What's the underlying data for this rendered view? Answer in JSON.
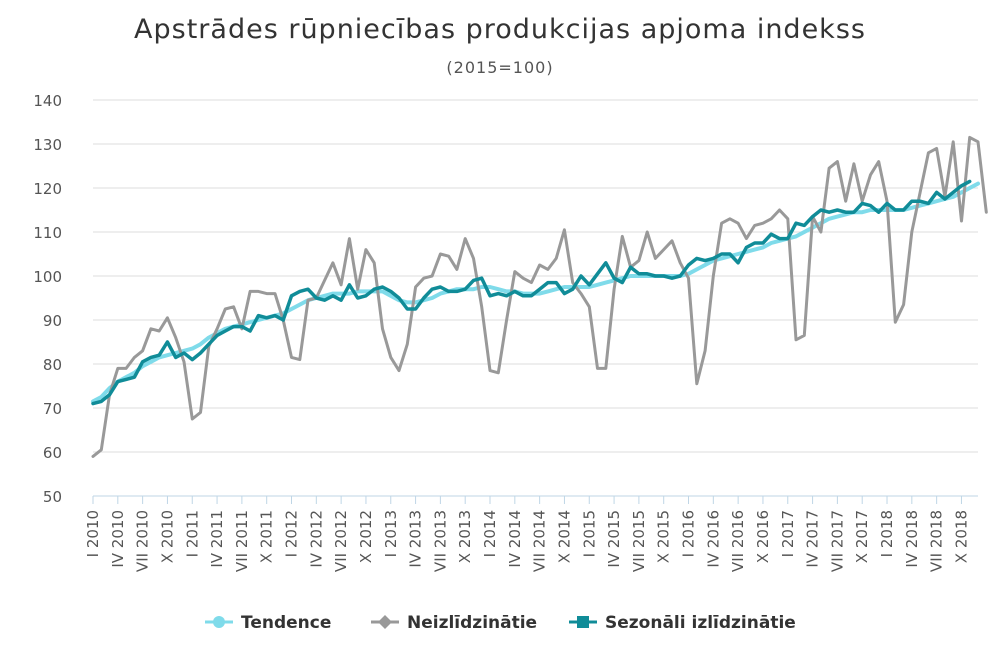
{
  "chart_data": {
    "type": "line",
    "title": "Apstrādes rūpniecības produkcijas apjoma indekss",
    "subtitle": "(2015=100)",
    "xlabel": "",
    "ylabel": "",
    "ylim": [
      50,
      140
    ],
    "yticks": [
      50,
      60,
      70,
      80,
      90,
      100,
      110,
      120,
      130,
      140
    ],
    "grid": true,
    "legend_position": "bottom",
    "x_ticks": [
      "I 2010",
      "IV 2010",
      "VII 2010",
      "X 2010",
      "I 2011",
      "IV 2011",
      "VII 2011",
      "X 2011",
      "I 2012",
      "IV 2012",
      "VII 2012",
      "X 2012",
      "I 2013",
      "IV 2013",
      "VII 2013",
      "X 2013",
      "I 2014",
      "IV 2014",
      "VII 2014",
      "X 2014",
      "I 2015",
      "IV 2015",
      "VII 2015",
      "X 2015",
      "I 2016",
      "IV 2016",
      "VII 2016",
      "X 2016",
      "I 2017",
      "IV 2017",
      "VII 2017",
      "X 2017",
      "I 2018",
      "IV 2018",
      "VII 2018",
      "X 2018"
    ],
    "series": [
      {
        "name": "Tendence",
        "color": "#7fdbea",
        "marker": "circle",
        "values": [
          71.5,
          72.5,
          74.5,
          76,
          77,
          78,
          79.5,
          80.5,
          81.5,
          82,
          82.5,
          83,
          83.5,
          84.5,
          86,
          87,
          88,
          88.5,
          89,
          89.5,
          90,
          90.5,
          91,
          91.5,
          92.5,
          93.5,
          94.5,
          95,
          95.5,
          96,
          96,
          96,
          96.5,
          96.5,
          96.5,
          96.5,
          95.5,
          94.5,
          94,
          94,
          94.5,
          95,
          96,
          96.5,
          97,
          97,
          97,
          97.5,
          97.5,
          97,
          96.5,
          96.5,
          96,
          96,
          96,
          96.5,
          97,
          97.5,
          97.5,
          97.5,
          97.5,
          98,
          98.5,
          99,
          99.5,
          100,
          100,
          100,
          100,
          100,
          100,
          100,
          100.5,
          101.5,
          102.5,
          103.5,
          104,
          104.5,
          105,
          105.5,
          106,
          106.5,
          107.5,
          108,
          108.5,
          109,
          110,
          111,
          112,
          113,
          113.5,
          114,
          114.5,
          114.5,
          115,
          115,
          115,
          115,
          115,
          115.5,
          116,
          116.5,
          117,
          117.5,
          118,
          119,
          120,
          121
        ]
      },
      {
        "name": "Neizlīdzinātie",
        "color": "#999999",
        "marker": "diamond",
        "values": [
          59,
          60.5,
          73,
          79,
          79,
          81.5,
          83,
          88,
          87.5,
          90.5,
          86,
          80.5,
          67.5,
          69,
          84,
          88,
          92.5,
          93,
          88,
          96.5,
          96.5,
          96,
          96,
          90,
          81.5,
          81,
          94.5,
          95,
          99,
          103,
          98,
          108.5,
          97,
          106,
          103,
          88,
          81.5,
          78.5,
          84.5,
          97.5,
          99.5,
          100,
          105,
          104.5,
          101.5,
          108.5,
          104,
          93,
          78.5,
          78,
          90,
          101,
          99.5,
          98.5,
          102.5,
          101.5,
          104,
          110.5,
          98.5,
          96,
          93,
          79,
          79,
          97,
          109,
          102,
          103.5,
          110,
          104,
          106,
          108,
          103,
          99.5,
          75.5,
          83,
          100,
          112,
          113,
          112,
          108.5,
          111.5,
          112,
          113,
          115,
          113,
          85.5,
          86.5,
          113.5,
          110,
          124.5,
          126,
          117,
          125.5,
          117,
          123,
          126,
          117,
          89.5,
          93.5,
          110,
          119,
          128,
          129,
          118,
          130.5,
          112.5,
          131.5,
          130.5,
          114.5
        ]
      },
      {
        "name": "Sezonāli izlīdzinātie",
        "color": "#108c98",
        "marker": "square",
        "values": [
          71,
          71.5,
          73,
          76,
          76.5,
          77,
          80.5,
          81.5,
          82,
          85,
          81.5,
          82.5,
          81,
          82.5,
          84.5,
          86.5,
          87.5,
          88.5,
          88.5,
          87.5,
          91,
          90.5,
          91,
          90,
          95.5,
          96.5,
          97,
          95,
          94.5,
          95.5,
          94.5,
          98,
          95,
          95.5,
          97,
          97.5,
          96.5,
          95,
          92.5,
          92.5,
          95,
          97,
          97.5,
          96.5,
          96.5,
          97,
          99,
          99.5,
          95.5,
          96,
          95.5,
          96.5,
          95.5,
          95.5,
          97,
          98.5,
          98.5,
          96,
          97,
          100,
          98,
          100.5,
          103,
          99.5,
          98.5,
          102,
          100.5,
          100.5,
          100,
          100,
          99.5,
          100,
          102.5,
          104,
          103.5,
          104,
          105,
          105,
          103,
          106.5,
          107.5,
          107.5,
          109.5,
          108.5,
          108.5,
          112,
          111.5,
          113.5,
          115,
          114.5,
          115,
          114.5,
          114.5,
          116.5,
          116,
          114.5,
          116.5,
          115,
          115,
          117,
          117,
          116.5,
          119,
          117.5,
          119,
          120.5,
          121.5
        ]
      }
    ]
  }
}
